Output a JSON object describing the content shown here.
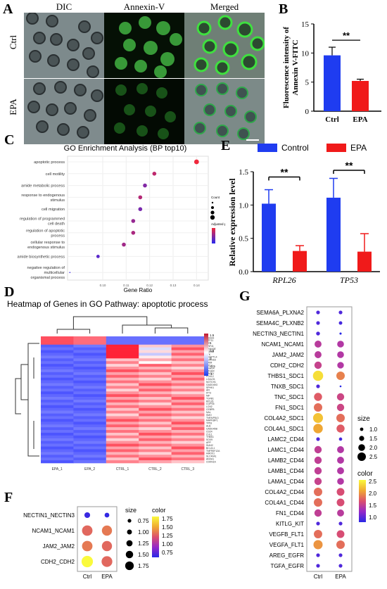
{
  "panel_labels": {
    "a": "A",
    "b": "B",
    "c": "C",
    "d": "D",
    "e": "E",
    "f": "F",
    "g": "G"
  },
  "panel_a": {
    "columns": [
      "DIC",
      "Annexin-V",
      "Merged"
    ],
    "rows": [
      "Ctrl",
      "EPA"
    ]
  },
  "colors": {
    "blue": "#1f3cf0",
    "red": "#f01a1a",
    "gene_pink": "#e8235a"
  },
  "chart_data": [
    {
      "id": "B",
      "type": "bar",
      "categories": [
        "Ctrl",
        "EPA"
      ],
      "values": [
        9.6,
        5.2
      ],
      "errors": [
        1.4,
        0.3
      ],
      "ylabel": "Fluorescence intensity of Annexin V-FITC",
      "ylim": [
        0,
        15
      ],
      "yticks": [
        "0",
        "5",
        "10",
        "15"
      ],
      "significance": "**"
    },
    {
      "id": "C",
      "type": "scatter",
      "title": "GO Enrichment Analysis (BP top10)",
      "categories": [
        "apoptotic process",
        "cell motility",
        "amide metabolic process",
        "response to endogenous stimulus",
        "cell migration",
        "regulation of programmed cell death",
        "regulation of apoptotic process",
        "cellular response to endogenous stimulus",
        "amide biosynthetic process",
        "negative regulation of multicellular organismal process"
      ],
      "x": [
        0.14,
        0.122,
        0.118,
        0.116,
        0.116,
        0.113,
        0.113,
        0.109,
        0.098,
        0.086
      ],
      "count_level": [
        3,
        2,
        2,
        2,
        2,
        2,
        2,
        2,
        1,
        0
      ],
      "padj_rank": [
        0.0,
        0.25,
        0.55,
        0.3,
        0.6,
        0.45,
        0.35,
        0.4,
        0.75,
        0.9
      ],
      "xlabel": "Gene Ratio",
      "xticks": [
        "0.10",
        "0.11",
        "0.12",
        "0.13",
        "0.14"
      ],
      "xlim": [
        0.085,
        0.145
      ],
      "legend_count_title": "Count",
      "legend_padj_title": "Adjusted p-value"
    },
    {
      "id": "E",
      "type": "bar",
      "categories": [
        "RPL26",
        "TP53"
      ],
      "series": [
        {
          "name": "Control",
          "values": [
            1.02,
            1.11
          ],
          "errors": [
            0.21,
            0.29
          ]
        },
        {
          "name": "EPA",
          "values": [
            0.31,
            0.3
          ],
          "errors": [
            0.08,
            0.27
          ]
        }
      ],
      "ylabel": "Relative expression level",
      "ylim": [
        0,
        1.5
      ],
      "yticks": [
        "0.0",
        "0.5",
        "1.0",
        "1.5"
      ],
      "significance": [
        "**",
        "**"
      ]
    },
    {
      "id": "D",
      "type": "heatmap",
      "title": "Heatmap of Genes in GO Pathway: apoptotic process",
      "columns": [
        "EPA_1",
        "EPA_2",
        "CTRL_1",
        "CTRL_2",
        "CTRL_3"
      ],
      "gene_labels": [
        "EBAG9",
        "UTF11",
        "NTF",
        "RNF41",
        "SEMA3E",
        "EGLN3",
        "LTK",
        "ANGPTL4",
        "CDKN1B",
        "TRIM",
        "MCL1",
        "SNHG4",
        "PTGER",
        "RACK1",
        "FOXL2",
        "LGALS1",
        "NOTCH1",
        "GADD45G",
        "SPHK1",
        "AFI",
        "IFT3",
        "NIF",
        "TGFB1",
        "RPL26",
        "COPS5",
        "LCN2",
        "CEBPB",
        "NAL",
        "SMO",
        "TNFAIP8L3",
        "MAPK8IP1",
        "TP53",
        "ALB",
        "GADD45B",
        "CD24",
        "CUL1",
        "THBS1",
        "SOX9",
        "APP",
        "SIAH2",
        "BCL2L1",
        "TNFRSF12A",
        "HMOX1",
        "SLC40A1",
        "ANXA1",
        "CDKN1A"
      ],
      "scale_ticks": [
        "1.5",
        "1",
        "0.5",
        "0",
        "-0.5",
        "-1"
      ]
    },
    {
      "id": "F",
      "type": "scatter",
      "categories": [
        "NECTIN1_NECTIN3",
        "NCAM1_NCAM1",
        "JAM2_JAM2",
        "CDH2_CDH2"
      ],
      "x_categories": [
        "Ctrl",
        "EPA"
      ],
      "points": [
        {
          "row": 0,
          "col": 0,
          "size": 0.9,
          "color": 0.8
        },
        {
          "row": 0,
          "col": 1,
          "size": 0.75,
          "color": 0.78
        },
        {
          "row": 1,
          "col": 0,
          "size": 1.65,
          "color": 1.45
        },
        {
          "row": 1,
          "col": 1,
          "size": 1.6,
          "color": 1.5
        },
        {
          "row": 2,
          "col": 0,
          "size": 1.65,
          "color": 1.5
        },
        {
          "row": 2,
          "col": 1,
          "size": 1.6,
          "color": 1.45
        },
        {
          "row": 3,
          "col": 0,
          "size": 1.8,
          "color": 1.8
        },
        {
          "row": 3,
          "col": 1,
          "size": 1.7,
          "color": 1.45
        }
      ],
      "size_legend": {
        "title": "size",
        "values": [
          "0.75",
          "1.00",
          "1.25",
          "1.50",
          "1.75"
        ]
      },
      "color_legend": {
        "title": "color",
        "ticks": [
          "1.75",
          "1.50",
          "1.25",
          "1.00",
          "0.75"
        ],
        "range": [
          0.75,
          1.8
        ]
      }
    },
    {
      "id": "G",
      "type": "scatter",
      "categories": [
        "SEMA6A_PLXNA2",
        "SEMA4C_PLXNB2",
        "NECTIN3_NECTIN1",
        "NCAM1_NCAM1",
        "JAM2_JAM2",
        "CDH2_CDH2",
        "THBS1_SDC1",
        "TNXB_SDC1",
        "TNC_SDC1",
        "FN1_SDC1",
        "COL4A2_SDC1",
        "COL4A1_SDC1",
        "LAMC2_CD44",
        "LAMC1_CD44",
        "LAMB2_CD44",
        "LAMB1_CD44",
        "LAMA1_CD44",
        "COL4A2_CD44",
        "COL4A1_CD44",
        "FN1_CD44",
        "KITLG_KIT",
        "VEGFB_FLT1",
        "VEGFA_FLT1",
        "AREG_EGFR",
        "TGFA_EGFR"
      ],
      "x_categories": [
        "Ctrl",
        "EPA"
      ],
      "points": [
        {
          "row": 0,
          "col": 0,
          "size": 1.0,
          "color": 0.9
        },
        {
          "row": 0,
          "col": 1,
          "size": 1.0,
          "color": 0.9
        },
        {
          "row": 1,
          "col": 0,
          "size": 1.0,
          "color": 0.9
        },
        {
          "row": 1,
          "col": 1,
          "size": 0.95,
          "color": 0.85
        },
        {
          "row": 2,
          "col": 0,
          "size": 1.05,
          "color": 0.9
        },
        {
          "row": 2,
          "col": 1,
          "size": 0.6,
          "color": 0.7
        },
        {
          "row": 3,
          "col": 0,
          "size": 1.9,
          "color": 1.55
        },
        {
          "row": 3,
          "col": 1,
          "size": 1.85,
          "color": 1.5
        },
        {
          "row": 4,
          "col": 0,
          "size": 1.9,
          "color": 1.55
        },
        {
          "row": 4,
          "col": 1,
          "size": 1.85,
          "color": 1.5
        },
        {
          "row": 5,
          "col": 0,
          "size": 2.0,
          "color": 1.65
        },
        {
          "row": 5,
          "col": 1,
          "size": 1.8,
          "color": 1.5
        },
        {
          "row": 6,
          "col": 0,
          "size": 2.8,
          "color": 2.5
        },
        {
          "row": 6,
          "col": 1,
          "size": 2.3,
          "color": 2.1
        },
        {
          "row": 7,
          "col": 0,
          "size": 1.0,
          "color": 0.9
        },
        {
          "row": 7,
          "col": 1,
          "size": 0.5,
          "color": 0.7
        },
        {
          "row": 8,
          "col": 0,
          "size": 2.2,
          "color": 1.9
        },
        {
          "row": 8,
          "col": 1,
          "size": 2.0,
          "color": 1.7
        },
        {
          "row": 9,
          "col": 0,
          "size": 2.3,
          "color": 2.0
        },
        {
          "row": 9,
          "col": 1,
          "size": 2.0,
          "color": 1.7
        },
        {
          "row": 10,
          "col": 0,
          "size": 2.7,
          "color": 2.4
        },
        {
          "row": 10,
          "col": 1,
          "size": 2.3,
          "color": 2.0
        },
        {
          "row": 11,
          "col": 0,
          "size": 2.6,
          "color": 2.3
        },
        {
          "row": 11,
          "col": 1,
          "size": 2.2,
          "color": 1.9
        },
        {
          "row": 12,
          "col": 0,
          "size": 1.0,
          "color": 0.9
        },
        {
          "row": 12,
          "col": 1,
          "size": 0.9,
          "color": 0.85
        },
        {
          "row": 13,
          "col": 0,
          "size": 2.0,
          "color": 1.6
        },
        {
          "row": 13,
          "col": 1,
          "size": 1.9,
          "color": 1.5
        },
        {
          "row": 14,
          "col": 0,
          "size": 2.0,
          "color": 1.6
        },
        {
          "row": 14,
          "col": 1,
          "size": 1.9,
          "color": 1.5
        },
        {
          "row": 15,
          "col": 0,
          "size": 2.0,
          "color": 1.6
        },
        {
          "row": 15,
          "col": 1,
          "size": 1.9,
          "color": 1.5
        },
        {
          "row": 16,
          "col": 0,
          "size": 2.0,
          "color": 1.65
        },
        {
          "row": 16,
          "col": 1,
          "size": 1.85,
          "color": 1.5
        },
        {
          "row": 17,
          "col": 0,
          "size": 2.3,
          "color": 2.0
        },
        {
          "row": 17,
          "col": 1,
          "size": 2.1,
          "color": 1.8
        },
        {
          "row": 18,
          "col": 0,
          "size": 2.3,
          "color": 2.0
        },
        {
          "row": 18,
          "col": 1,
          "size": 2.1,
          "color": 1.8
        },
        {
          "row": 19,
          "col": 0,
          "size": 2.0,
          "color": 1.6
        },
        {
          "row": 19,
          "col": 1,
          "size": 1.9,
          "color": 1.55
        },
        {
          "row": 20,
          "col": 0,
          "size": 1.0,
          "color": 0.9
        },
        {
          "row": 20,
          "col": 1,
          "size": 1.0,
          "color": 0.9
        },
        {
          "row": 21,
          "col": 0,
          "size": 2.3,
          "color": 2.0
        },
        {
          "row": 21,
          "col": 1,
          "size": 2.1,
          "color": 1.8
        },
        {
          "row": 22,
          "col": 0,
          "size": 2.5,
          "color": 2.2
        },
        {
          "row": 22,
          "col": 1,
          "size": 2.3,
          "color": 2.0
        },
        {
          "row": 23,
          "col": 0,
          "size": 1.0,
          "color": 0.9
        },
        {
          "row": 23,
          "col": 1,
          "size": 1.0,
          "color": 0.9
        },
        {
          "row": 24,
          "col": 0,
          "size": 1.0,
          "color": 0.9
        },
        {
          "row": 24,
          "col": 1,
          "size": 1.0,
          "color": 0.9
        }
      ],
      "size_legend": {
        "title": "size",
        "values": [
          "1.0",
          "1.5",
          "2.0",
          "2.5"
        ]
      },
      "color_legend": {
        "title": "color",
        "ticks": [
          "2.5",
          "2.0",
          "1.5",
          "1.0"
        ],
        "range": [
          0.7,
          2.6
        ]
      }
    }
  ]
}
